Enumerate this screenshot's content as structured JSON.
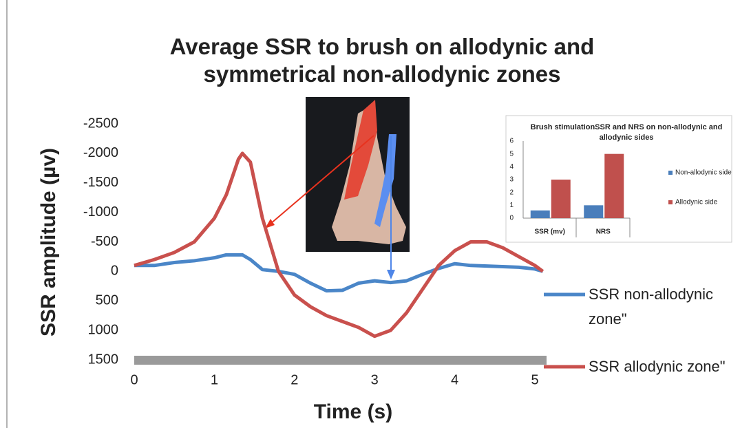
{
  "chart_data": [
    {
      "type": "line",
      "title": "Average SSR to brush on allodynic and symmetrical non-allodynic zones",
      "x_label": "Time (s)",
      "y_label": "SSR amplitude (µv)",
      "x": [
        0,
        0.25,
        0.5,
        0.75,
        1,
        1.15,
        1.3,
        1.35,
        1.45,
        1.6,
        1.8,
        2,
        2.2,
        2.4,
        2.6,
        2.8,
        3,
        3.2,
        3.4,
        3.6,
        3.8,
        4,
        4.2,
        4.4,
        4.6,
        4.8,
        5,
        5.1
      ],
      "series": [
        {
          "name": "SSR non-allodynic zone\"",
          "color": "#4a86c8",
          "values": [
            -100,
            -100,
            -150,
            -180,
            -230,
            -280,
            -280,
            -280,
            -200,
            -30,
            0,
            50,
            200,
            330,
            320,
            200,
            160,
            190,
            160,
            50,
            -50,
            -130,
            -100,
            -90,
            -80,
            -70,
            -40,
            0
          ]
        },
        {
          "name": "SSR allodynic zone\"",
          "color": "#c9504d",
          "values": [
            -100,
            -200,
            -320,
            -500,
            -900,
            -1300,
            -1900,
            -2000,
            -1850,
            -900,
            0,
            400,
            600,
            750,
            850,
            950,
            1100,
            1000,
            700,
            300,
            -100,
            -350,
            -500,
            -500,
            -400,
            -250,
            -100,
            0
          ]
        }
      ],
      "xlim": [
        0,
        5.15
      ],
      "xticks": [
        0,
        1,
        2,
        3,
        4,
        5
      ],
      "ylim": [
        1500,
        -2500
      ],
      "yticks": [
        -2500,
        -2000,
        -1500,
        -1000,
        -500,
        0,
        500,
        1000,
        1500
      ]
    },
    {
      "type": "bar",
      "title": "Brush stimulationSSR and NRS on non-allodynic and allodynic sides",
      "categories": [
        "SSR (mv)",
        "NRS"
      ],
      "series": [
        {
          "name": "Non-allodynic side",
          "color": "#4a7ebb",
          "values": [
            0.6,
            1
          ]
        },
        {
          "name": "Allodynic side",
          "color": "#c0504d",
          "values": [
            3,
            5
          ]
        }
      ],
      "ylim": [
        0,
        6
      ],
      "yticks": [
        0,
        1,
        2,
        3,
        4,
        5,
        6
      ]
    }
  ]
}
